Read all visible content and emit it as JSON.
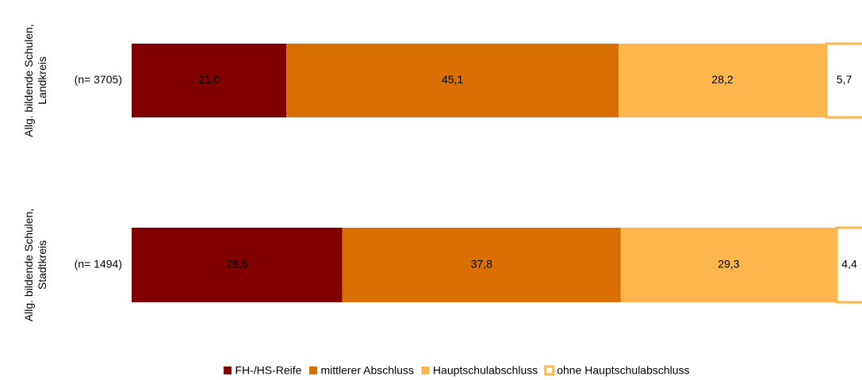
{
  "chart_data": {
    "type": "stacked_bar_horizontal",
    "categories": [
      [
        "Allg. bildende Schulen,",
        "Landkreis"
      ],
      [
        "Allg. bildende Schulen,",
        "Stadtkreis"
      ]
    ],
    "n_labels": [
      "(n= 3705)",
      "(n= 1494)"
    ],
    "xlim": [
      0,
      100
    ],
    "series": [
      {
        "name": "FH-/HS-Reife",
        "color": "#800000",
        "label_color": "#ffffff",
        "values": [
          21.0,
          28.6
        ],
        "value_labels": [
          "21,0",
          "28,6"
        ]
      },
      {
        "name": "mittlerer Abschluss",
        "color": "#d86f00",
        "label_color": "#000000",
        "values": [
          45.1,
          37.8
        ],
        "value_labels": [
          "45,1",
          "37,8"
        ]
      },
      {
        "name": "Hauptschulabschluss",
        "color": "#fdb64e",
        "label_color": "#000000",
        "values": [
          28.2,
          29.3
        ],
        "value_labels": [
          "28,2",
          "29,3"
        ]
      },
      {
        "name": "ohne Hauptschulabschluss",
        "color": "#ffffff",
        "border": "#fdb64e",
        "label_color": "#000000",
        "values": [
          5.7,
          4.4
        ],
        "value_labels": [
          "5,7",
          "4,4"
        ]
      }
    ]
  }
}
